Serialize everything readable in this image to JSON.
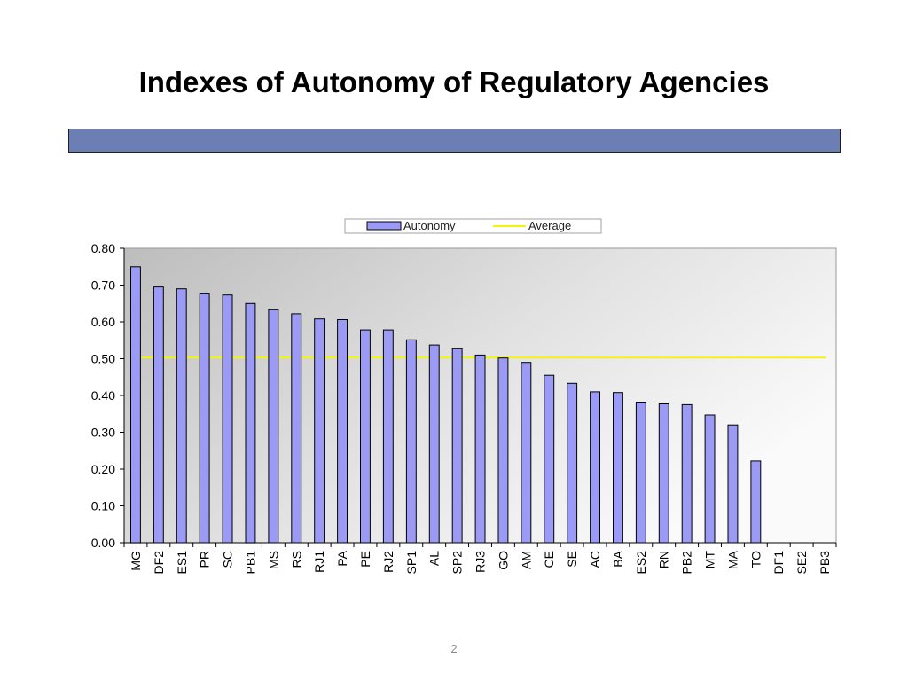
{
  "slide": {
    "title": "Indexes of Autonomy of Regulatory Agencies",
    "page_number": "2"
  },
  "chart_data": {
    "type": "bar",
    "categories": [
      "MG",
      "DF2",
      "ES1",
      "PR",
      "SC",
      "PB1",
      "MS",
      "RS",
      "RJ1",
      "PA",
      "PE",
      "RJ2",
      "SP1",
      "AL",
      "SP2",
      "RJ3",
      "GO",
      "AM",
      "CE",
      "SE",
      "AC",
      "BA",
      "ES2",
      "RN",
      "PB2",
      "MT",
      "MA",
      "TO",
      "DF1",
      "SE2",
      "PB3"
    ],
    "series": [
      {
        "name": "Autonomy",
        "values": [
          0.75,
          0.695,
          0.69,
          0.678,
          0.673,
          0.65,
          0.633,
          0.622,
          0.608,
          0.606,
          0.578,
          0.578,
          0.551,
          0.537,
          0.527,
          0.51,
          0.502,
          0.49,
          0.455,
          0.433,
          0.41,
          0.408,
          0.382,
          0.377,
          0.375,
          0.347,
          0.32,
          0.222,
          0,
          0,
          0
        ],
        "color": "#9b9bf5"
      },
      {
        "name": "Average",
        "type": "line",
        "value": 0.503,
        "color": "#f5f50a"
      }
    ],
    "yticks": [
      "0.00",
      "0.10",
      "0.20",
      "0.30",
      "0.40",
      "0.50",
      "0.60",
      "0.70",
      "0.80"
    ],
    "ylim": [
      0,
      0.8
    ],
    "grid": false,
    "legend": "top"
  }
}
